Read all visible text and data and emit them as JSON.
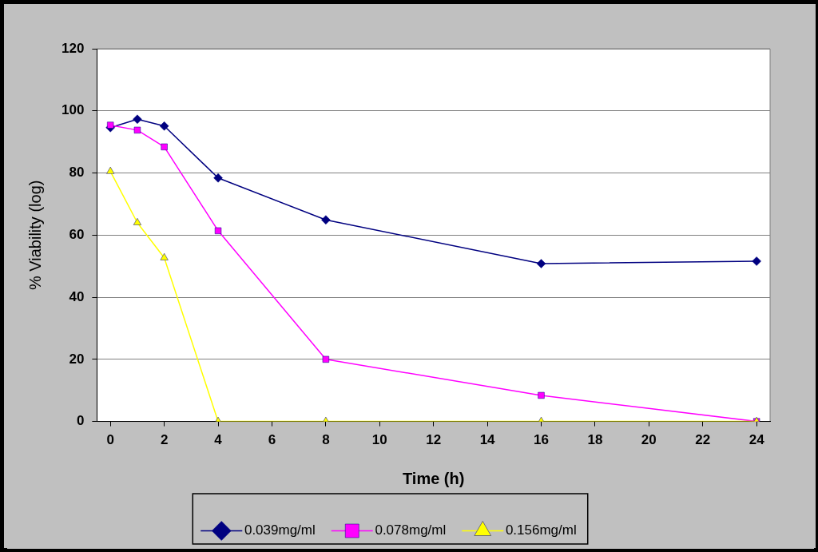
{
  "chart_data": {
    "type": "scatter",
    "xlabel": "Time (h)",
    "ylabel": "% Viability (log)",
    "x": [
      0,
      1,
      2,
      4,
      8,
      16,
      24
    ],
    "series": [
      {
        "name": "0.039mg/ml",
        "color": "#000080",
        "type": "line",
        "marker": "diamond",
        "values": [
          94.6,
          97.3,
          95.1,
          78.4,
          64.9,
          50.8,
          51.6
        ]
      },
      {
        "name": "0.078mg/ml",
        "color": "#ff00ff",
        "type": "line",
        "marker": "square",
        "values": [
          95.4,
          93.8,
          88.4,
          61.4,
          20,
          8.4,
          0
        ]
      },
      {
        "name": "0.156mg/ml",
        "color": "#ffff00",
        "type": "line",
        "marker": "triangle",
        "values": [
          80.5,
          64,
          52.7,
          0,
          0,
          0,
          0
        ]
      }
    ],
    "xlim": [
      -0.5,
      24.5
    ],
    "xticks": [
      0,
      2,
      4,
      6,
      8,
      10,
      12,
      14,
      16,
      18,
      20,
      22,
      24
    ],
    "ylim": [
      0,
      120
    ],
    "yticks": [
      0,
      20,
      40,
      60,
      80,
      100,
      120
    ],
    "grid": "y",
    "legend": "bottom"
  }
}
